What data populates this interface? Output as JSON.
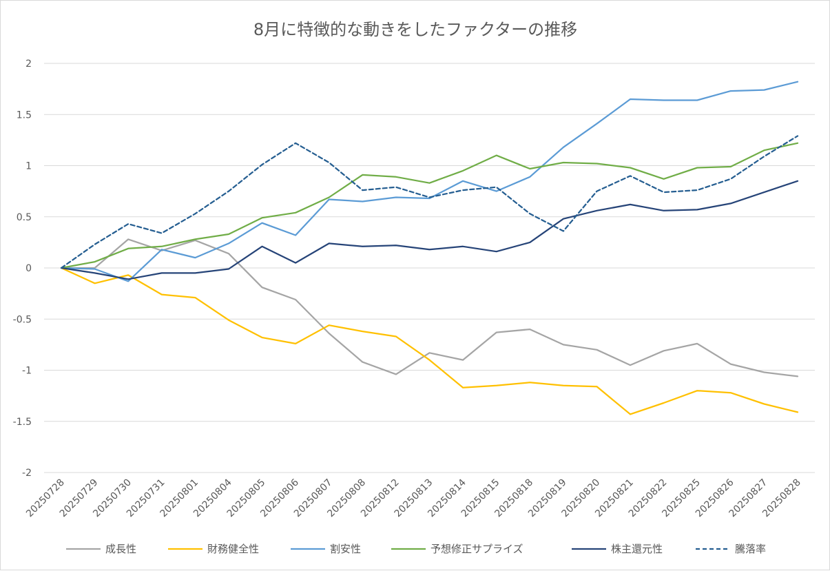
{
  "chart_data": {
    "type": "line",
    "title": "8月に特徴的な動きをしたファクターの推移",
    "xlabel": "",
    "ylabel": "",
    "ylim": [
      -2,
      2
    ],
    "y_ticks": [
      "2",
      "1.5",
      "1",
      "0.5",
      "0",
      "-0.5",
      "-1",
      "-1.5",
      "-2"
    ],
    "y_tick_values": [
      2,
      1.5,
      1,
      0.5,
      0,
      -0.5,
      -1,
      -1.5,
      -2
    ],
    "grid": true,
    "legend_position": "bottom",
    "categories": [
      "20250728",
      "20250729",
      "20250730",
      "20250731",
      "20250801",
      "20250804",
      "20250805",
      "20250806",
      "20250807",
      "20250808",
      "20250812",
      "20250813",
      "20250814",
      "20250815",
      "20250818",
      "20250819",
      "20250820",
      "20250821",
      "20250822",
      "20250825",
      "20250826",
      "20250827",
      "20250828"
    ],
    "series": [
      {
        "name": "成長性",
        "color": "#a5a5a5",
        "dash": "solid",
        "values": [
          0,
          0,
          0.28,
          0.17,
          0.27,
          0.14,
          -0.19,
          -0.31,
          -0.64,
          -0.92,
          -1.04,
          -0.83,
          -0.9,
          -0.63,
          -0.6,
          -0.75,
          -0.8,
          -0.95,
          -0.81,
          -0.74,
          -0.94,
          -1.02,
          -1.06
        ]
      },
      {
        "name": "財務健全性",
        "color": "#ffc000",
        "dash": "solid",
        "values": [
          0,
          -0.15,
          -0.07,
          -0.26,
          -0.29,
          -0.51,
          -0.68,
          -0.74,
          -0.56,
          -0.62,
          -0.67,
          -0.9,
          -1.17,
          -1.15,
          -1.12,
          -1.15,
          -1.16,
          -1.43,
          -1.32,
          -1.2,
          -1.22,
          -1.33,
          -1.41
        ]
      },
      {
        "name": "割安性",
        "color": "#5b9bd5",
        "dash": "solid",
        "values": [
          0,
          -0.01,
          -0.13,
          0.18,
          0.1,
          0.24,
          0.44,
          0.32,
          0.67,
          0.65,
          0.69,
          0.68,
          0.85,
          0.75,
          0.89,
          1.18,
          1.41,
          1.65,
          1.64,
          1.64,
          1.73,
          1.74,
          1.82
        ]
      },
      {
        "name": "予想修正サプライズ",
        "color": "#70ad47",
        "dash": "solid",
        "values": [
          0,
          0.06,
          0.19,
          0.21,
          0.28,
          0.33,
          0.49,
          0.54,
          0.69,
          0.91,
          0.89,
          0.83,
          0.95,
          1.1,
          0.97,
          1.03,
          1.02,
          0.98,
          0.87,
          0.98,
          0.99,
          1.15,
          1.22
        ]
      },
      {
        "name": "株主還元性",
        "color": "#264478",
        "dash": "solid",
        "values": [
          0,
          -0.05,
          -0.11,
          -0.05,
          -0.05,
          -0.01,
          0.21,
          0.05,
          0.24,
          0.21,
          0.22,
          0.18,
          0.21,
          0.16,
          0.25,
          0.48,
          0.56,
          0.62,
          0.56,
          0.57,
          0.63,
          0.74,
          0.85
        ]
      },
      {
        "name": "騰落率",
        "color": "#255e91",
        "dash": "dashed",
        "values": [
          0,
          0.23,
          0.43,
          0.34,
          0.53,
          0.75,
          1.01,
          1.22,
          1.03,
          0.76,
          0.79,
          0.69,
          0.76,
          0.79,
          0.53,
          0.36,
          0.75,
          0.9,
          0.74,
          0.76,
          0.87,
          1.09,
          1.29
        ]
      }
    ]
  }
}
